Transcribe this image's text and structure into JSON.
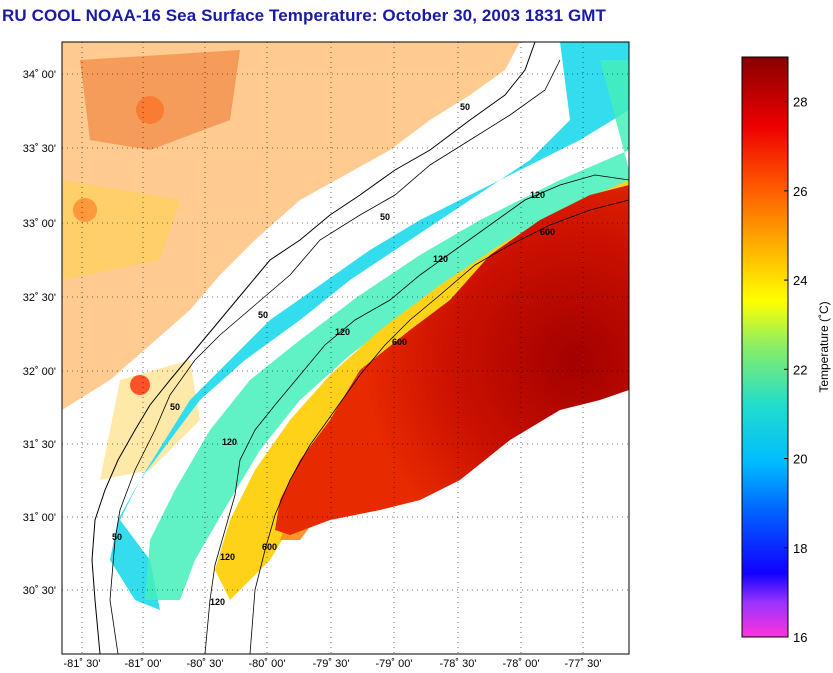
{
  "title": "RU COOL  NOAA-16  Sea Surface Temperature:  October 30, 2003 1831 GMT",
  "map": {
    "lat_labels": [
      "34˚ 00'",
      "33˚ 30'",
      "33˚ 00'",
      "32˚ 30'",
      "32˚ 00'",
      "31˚ 30'",
      "31˚ 00'",
      "30˚ 30'"
    ],
    "lon_labels": [
      "-81˚ 30'",
      "-81˚ 00'",
      "-80˚ 30'",
      "-80˚ 00'",
      "-79˚ 30'",
      "-79˚ 00'",
      "-78˚ 30'",
      "-78˚ 00'",
      "-77˚ 30'"
    ],
    "isobath_labels": [
      "50",
      "120",
      "600"
    ]
  },
  "colorbar": {
    "label": "Temperature (˚C)",
    "ticks": [
      "28",
      "26",
      "24",
      "22",
      "20",
      "18",
      "16"
    ],
    "min": 16,
    "max": 29,
    "tick_values": [
      28,
      26,
      24,
      22,
      20,
      18,
      16
    ],
    "colors": [
      "#ff33cc",
      "#9933ff",
      "#0000ff",
      "#0044ff",
      "#00aaff",
      "#22dddd",
      "#66ee99",
      "#ccff33",
      "#ffff00",
      "#ffaa00",
      "#ff4400",
      "#ee0000",
      "#8b0000"
    ]
  }
}
